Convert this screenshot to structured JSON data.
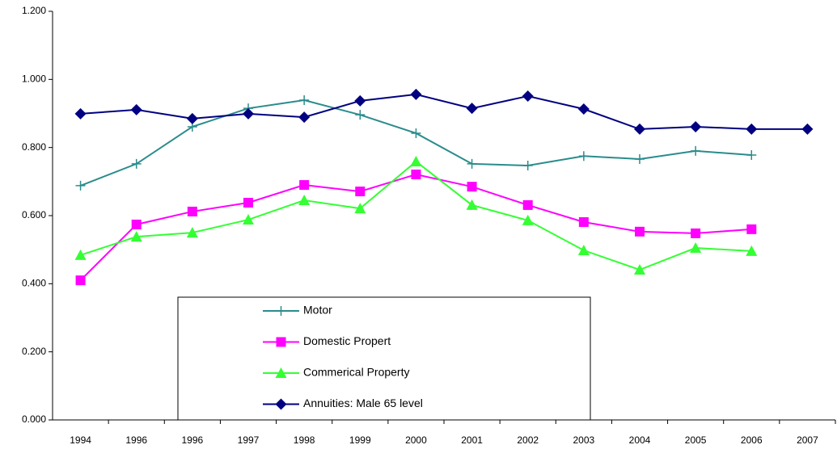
{
  "chart_data": {
    "type": "line",
    "categories": [
      "1994",
      "1996",
      "1996",
      "1997",
      "1998",
      "1999",
      "2000",
      "2001",
      "2002",
      "2003",
      "2004",
      "2005",
      "2006",
      "2007"
    ],
    "series": [
      {
        "name": "Motor",
        "color": "#2a8c8c",
        "marker": "plus",
        "values": [
          0.688,
          0.752,
          0.861,
          0.915,
          0.939,
          0.896,
          0.842,
          0.752,
          0.747,
          0.775,
          0.766,
          0.79,
          0.778,
          null
        ]
      },
      {
        "name": "Domestic Propert",
        "color": "#ff00ff",
        "marker": "square",
        "values": [
          0.41,
          0.574,
          0.612,
          0.638,
          0.69,
          0.671,
          0.721,
          0.685,
          0.631,
          0.581,
          0.553,
          0.548,
          0.56,
          null
        ]
      },
      {
        "name": "Commerical Property",
        "color": "#33ff33",
        "marker": "triangle",
        "values": [
          0.484,
          0.538,
          0.55,
          0.588,
          0.645,
          0.621,
          0.759,
          0.631,
          0.586,
          0.498,
          0.441,
          0.505,
          0.496,
          null
        ]
      },
      {
        "name": "Annuities: Male 65 level",
        "color": "#000080",
        "marker": "diamond",
        "values": [
          0.899,
          0.911,
          0.885,
          0.899,
          0.889,
          0.937,
          0.956,
          0.915,
          0.951,
          0.913,
          0.854,
          0.861,
          0.854,
          0.854
        ]
      }
    ],
    "ylim": [
      0,
      1.2
    ],
    "yticks": [
      {
        "value": 0,
        "label": "0.000"
      },
      {
        "value": 0.2,
        "label": "0.200"
      },
      {
        "value": 0.4,
        "label": "0.400"
      },
      {
        "value": 0.6,
        "label": "0.600"
      },
      {
        "value": 0.8,
        "label": "0.800"
      },
      {
        "value": 1.0,
        "label": "1.000"
      },
      {
        "value": 1.2,
        "label": "1.200"
      }
    ],
    "grid": false
  }
}
